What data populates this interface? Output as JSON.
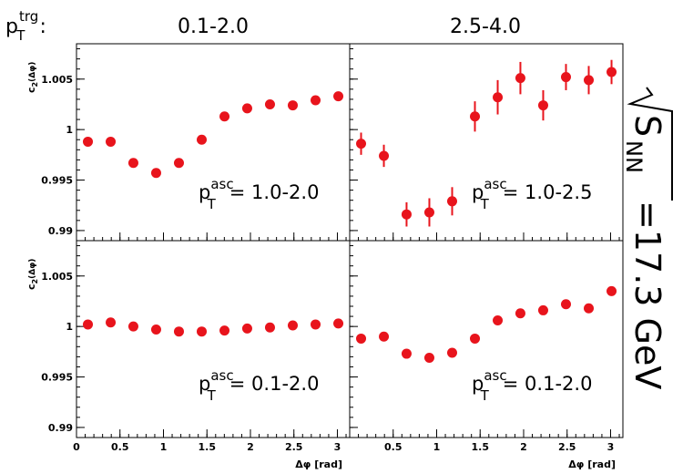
{
  "figure": {
    "trig_label_main": "p",
    "trig_label_sup": "trg",
    "trig_label_sub": "T",
    "trig_label_colon": ":",
    "energy_label_main": "S",
    "energy_label_sub": "NN",
    "energy_label_value": "=17.3 GeV"
  },
  "chart_data": [
    {
      "type": "scatter",
      "panel": "top-left",
      "column_title": "0.1-2.0",
      "annotation": {
        "main": "p",
        "sup": "asc",
        "sub": "T",
        "value": "= 1.0-2.0"
      },
      "ylabel": {
        "main": "c",
        "sub": "2",
        "arg": "(Δφ)"
      },
      "xlabel": "",
      "xlim": [
        0,
        3.14159
      ],
      "ylim": [
        0.989,
        1.0085
      ],
      "xticks": [
        0,
        0.5,
        1,
        1.5,
        2,
        2.5,
        3
      ],
      "yticks": [
        {
          "v": 0.99,
          "label": "0.99"
        },
        {
          "v": 0.995,
          "label": "0.995"
        },
        {
          "v": 1.0,
          "label": "1"
        },
        {
          "v": 1.005,
          "label": "1.005"
        }
      ],
      "series": [
        {
          "name": "data",
          "color": "#e8141c",
          "x": [
            0.131,
            0.393,
            0.654,
            0.916,
            1.178,
            1.44,
            1.702,
            1.963,
            2.225,
            2.487,
            2.749,
            3.011
          ],
          "y": [
            0.9988,
            0.9988,
            0.9967,
            0.9957,
            0.9967,
            0.999,
            1.0013,
            1.0021,
            1.0025,
            1.0024,
            1.0029,
            1.0033
          ],
          "err": [
            0,
            0,
            0,
            0,
            0,
            0,
            0,
            0,
            0,
            0,
            0,
            0
          ]
        }
      ]
    },
    {
      "type": "scatter",
      "panel": "top-right",
      "column_title": "2.5-4.0",
      "annotation": {
        "main": "p",
        "sup": "asc",
        "sub": "T",
        "value": "= 1.0-2.5"
      },
      "ylabel": null,
      "xlabel": "",
      "xlim": [
        0,
        3.14159
      ],
      "ylim": [
        0.989,
        1.0085
      ],
      "xticks": [
        0,
        0.5,
        1,
        1.5,
        2,
        2.5,
        3
      ],
      "yticks": [
        {
          "v": 0.99,
          "label": ""
        },
        {
          "v": 0.995,
          "label": ""
        },
        {
          "v": 1.0,
          "label": ""
        },
        {
          "v": 1.005,
          "label": ""
        }
      ],
      "series": [
        {
          "name": "data",
          "color": "#e8141c",
          "x": [
            0.131,
            0.393,
            0.654,
            0.916,
            1.178,
            1.44,
            1.702,
            1.963,
            2.225,
            2.487,
            2.749,
            3.011
          ],
          "y": [
            0.9986,
            0.9974,
            0.9916,
            0.9918,
            0.9929,
            1.0013,
            1.0032,
            1.0051,
            1.0024,
            1.0052,
            1.0049,
            1.0057
          ],
          "err": [
            0.0011,
            0.0011,
            0.0012,
            0.0014,
            0.0014,
            0.0015,
            0.0017,
            0.0016,
            0.0015,
            0.0013,
            0.0014,
            0.0012
          ]
        }
      ]
    },
    {
      "type": "scatter",
      "panel": "bottom-left",
      "column_title": "",
      "annotation": {
        "main": "p",
        "sup": "asc",
        "sub": "T",
        "value": "= 0.1-2.0"
      },
      "ylabel": {
        "main": "c",
        "sub": "2",
        "arg": "(Δφ)"
      },
      "xlabel": "Δφ [rad]",
      "xlim": [
        0,
        3.14159
      ],
      "ylim": [
        0.989,
        1.0085
      ],
      "xticks": [
        {
          "v": 0,
          "label": "0"
        },
        {
          "v": 0.5,
          "label": "0.5"
        },
        {
          "v": 1,
          "label": "1"
        },
        {
          "v": 1.5,
          "label": "1.5"
        },
        {
          "v": 2,
          "label": "2"
        },
        {
          "v": 2.5,
          "label": "2.5"
        },
        {
          "v": 3,
          "label": "3"
        }
      ],
      "yticks": [
        {
          "v": 0.99,
          "label": "0.99"
        },
        {
          "v": 0.995,
          "label": "0.995"
        },
        {
          "v": 1.0,
          "label": "1"
        },
        {
          "v": 1.005,
          "label": "1.005"
        }
      ],
      "series": [
        {
          "name": "data",
          "color": "#e8141c",
          "x": [
            0.131,
            0.393,
            0.654,
            0.916,
            1.178,
            1.44,
            1.702,
            1.963,
            2.225,
            2.487,
            2.749,
            3.011
          ],
          "y": [
            1.0002,
            1.0004,
            1.0,
            0.9997,
            0.9995,
            0.9995,
            0.9996,
            0.9998,
            0.9999,
            1.0001,
            1.0002,
            1.0003
          ],
          "err": [
            0,
            0,
            0,
            0,
            0,
            0,
            0,
            0,
            0,
            0,
            0,
            0
          ]
        }
      ]
    },
    {
      "type": "scatter",
      "panel": "bottom-right",
      "column_title": "",
      "annotation": {
        "main": "p",
        "sup": "asc",
        "sub": "T",
        "value": "= 0.1-2.0"
      },
      "ylabel": null,
      "xlabel": "Δφ [rad]",
      "xlim": [
        0,
        3.14159
      ],
      "ylim": [
        0.989,
        1.0085
      ],
      "xticks": [
        {
          "v": 0,
          "label": ""
        },
        {
          "v": 0.5,
          "label": "0.5"
        },
        {
          "v": 1,
          "label": "1"
        },
        {
          "v": 1.5,
          "label": "1.5"
        },
        {
          "v": 2,
          "label": "2"
        },
        {
          "v": 2.5,
          "label": "2.5"
        },
        {
          "v": 3,
          "label": "3"
        }
      ],
      "yticks": [
        {
          "v": 0.99,
          "label": ""
        },
        {
          "v": 0.995,
          "label": ""
        },
        {
          "v": 1.0,
          "label": ""
        },
        {
          "v": 1.005,
          "label": ""
        }
      ],
      "series": [
        {
          "name": "data",
          "color": "#e8141c",
          "x": [
            0.131,
            0.393,
            0.654,
            0.916,
            1.178,
            1.44,
            1.702,
            1.963,
            2.225,
            2.487,
            2.749,
            3.011
          ],
          "y": [
            0.9988,
            0.999,
            0.9973,
            0.9969,
            0.9974,
            0.9988,
            1.0006,
            1.0013,
            1.0016,
            1.0022,
            1.0018,
            1.0035
          ],
          "err": [
            0,
            0,
            0,
            0,
            0,
            0,
            0,
            0,
            0,
            0,
            0,
            0
          ]
        }
      ]
    }
  ]
}
